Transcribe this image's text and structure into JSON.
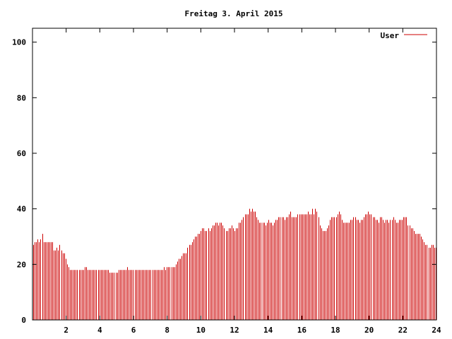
{
  "chart_data": {
    "type": "bar",
    "title": "Freitag 3. April 2015",
    "xlabel": "",
    "ylabel": "",
    "xlim": [
      0,
      24
    ],
    "ylim": [
      0,
      105
    ],
    "x_ticks": [
      "2",
      "4",
      "6",
      "8",
      "10",
      "12",
      "14",
      "16",
      "18",
      "20",
      "22",
      "24"
    ],
    "y_ticks": [
      "0",
      "20",
      "40",
      "60",
      "80",
      "100"
    ],
    "grid": false,
    "legend_position": "top-right",
    "series": [
      {
        "name": "User",
        "color": "#cc0000",
        "bin_hours": 0.0833,
        "values": [
          27,
          28,
          28,
          29,
          28,
          29,
          31,
          28,
          28,
          28,
          28,
          28,
          28,
          28,
          25,
          25,
          26,
          25,
          27,
          25,
          24,
          24,
          22,
          20,
          19,
          18,
          18,
          18,
          18,
          18,
          18,
          18,
          18,
          18,
          18,
          19,
          19,
          18,
          18,
          18,
          18,
          18,
          18,
          18,
          18,
          18,
          18,
          18,
          18,
          18,
          18,
          18,
          17,
          17,
          17,
          17,
          17,
          17,
          18,
          18,
          18,
          18,
          18,
          18,
          19,
          18,
          18,
          18,
          18,
          18,
          18,
          18,
          18,
          18,
          18,
          18,
          18,
          18,
          18,
          18,
          18,
          18,
          18,
          18,
          18,
          18,
          18,
          18,
          18,
          19,
          18,
          19,
          19,
          19,
          19,
          19,
          19,
          20,
          21,
          22,
          22,
          23,
          24,
          24,
          24,
          26,
          27,
          27,
          28,
          29,
          30,
          30,
          31,
          31,
          32,
          33,
          33,
          32,
          32,
          33,
          32,
          33,
          34,
          34,
          35,
          35,
          34,
          35,
          35,
          34,
          33,
          32,
          32,
          33,
          33,
          34,
          33,
          32,
          33,
          33,
          35,
          35,
          36,
          37,
          38,
          38,
          38,
          40,
          39,
          40,
          39,
          39,
          37,
          36,
          35,
          35,
          35,
          35,
          34,
          35,
          36,
          35,
          35,
          34,
          35,
          36,
          36,
          37,
          37,
          37,
          37,
          36,
          37,
          37,
          38,
          39,
          37,
          37,
          37,
          37,
          38,
          38,
          38,
          38,
          38,
          38,
          38,
          39,
          38,
          38,
          40,
          38,
          40,
          39,
          37,
          34,
          33,
          32,
          32,
          32,
          33,
          34,
          36,
          37,
          37,
          37,
          37,
          38,
          39,
          38,
          36,
          35,
          35,
          35,
          35,
          35,
          36,
          36,
          37,
          37,
          36,
          36,
          35,
          36,
          36,
          37,
          38,
          38,
          39,
          38,
          38,
          37,
          37,
          36,
          36,
          35,
          37,
          37,
          36,
          35,
          36,
          36,
          35,
          36,
          36,
          37,
          36,
          35,
          35,
          36,
          36,
          36,
          37,
          37,
          37,
          34,
          34,
          33,
          33,
          32,
          31,
          31,
          31,
          31,
          30,
          29,
          28,
          27,
          27,
          26,
          26,
          27,
          27,
          26,
          26
        ]
      }
    ]
  }
}
